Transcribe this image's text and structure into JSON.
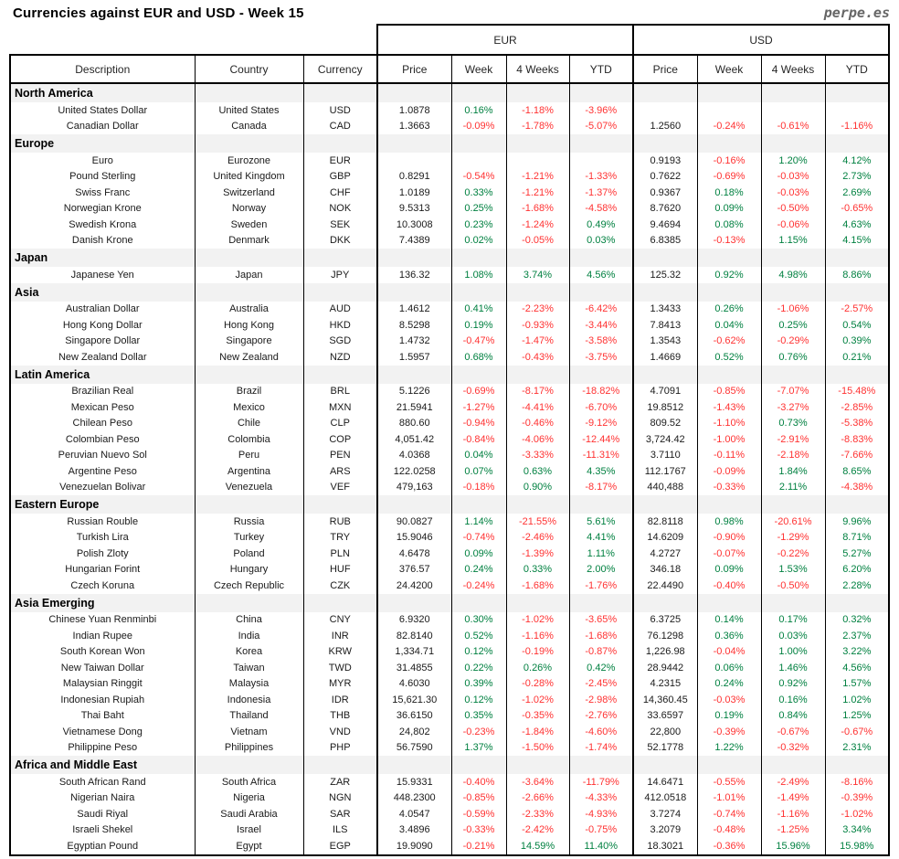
{
  "brand": "perpe.es",
  "colors": {
    "positive": "#008040",
    "negative": "#FF3232",
    "region_band": "#F2F2F2",
    "brand_gray": "#666666",
    "border": "#000000"
  },
  "chart_data": {
    "type": "table",
    "title": "Currencies against EUR and USD - Week 15",
    "group_headers": [
      "EUR",
      "USD"
    ],
    "columns": [
      "Description",
      "Country",
      "Currency",
      "Price",
      "Week",
      "4 Weeks",
      "YTD",
      "Price",
      "Week",
      "4 Weeks",
      "YTD"
    ],
    "sections": [
      {
        "region": "North America",
        "rows": [
          [
            "United States Dollar",
            "United States",
            "USD",
            "1.0878",
            "0.16%",
            "-1.18%",
            "-3.96%",
            "",
            "",
            "",
            ""
          ],
          [
            "Canadian Dollar",
            "Canada",
            "CAD",
            "1.3663",
            "-0.09%",
            "-1.78%",
            "-5.07%",
            "1.2560",
            "-0.24%",
            "-0.61%",
            "-1.16%"
          ]
        ]
      },
      {
        "region": "Europe",
        "rows": [
          [
            "Euro",
            "Eurozone",
            "EUR",
            "",
            "",
            "",
            "",
            "0.9193",
            "-0.16%",
            "1.20%",
            "4.12%"
          ],
          [
            "Pound Sterling",
            "United Kingdom",
            "GBP",
            "0.8291",
            "-0.54%",
            "-1.21%",
            "-1.33%",
            "0.7622",
            "-0.69%",
            "-0.03%",
            "2.73%"
          ],
          [
            "Swiss Franc",
            "Switzerland",
            "CHF",
            "1.0189",
            "0.33%",
            "-1.21%",
            "-1.37%",
            "0.9367",
            "0.18%",
            "-0.03%",
            "2.69%"
          ],
          [
            "Norwegian Krone",
            "Norway",
            "NOK",
            "9.5313",
            "0.25%",
            "-1.68%",
            "-4.58%",
            "8.7620",
            "0.09%",
            "-0.50%",
            "-0.65%"
          ],
          [
            "Swedish Krona",
            "Sweden",
            "SEK",
            "10.3008",
            "0.23%",
            "-1.24%",
            "0.49%",
            "9.4694",
            "0.08%",
            "-0.06%",
            "4.63%"
          ],
          [
            "Danish Krone",
            "Denmark",
            "DKK",
            "7.4389",
            "0.02%",
            "-0.05%",
            "0.03%",
            "6.8385",
            "-0.13%",
            "1.15%",
            "4.15%"
          ]
        ]
      },
      {
        "region": "Japan",
        "rows": [
          [
            "Japanese Yen",
            "Japan",
            "JPY",
            "136.32",
            "1.08%",
            "3.74%",
            "4.56%",
            "125.32",
            "0.92%",
            "4.98%",
            "8.86%"
          ]
        ]
      },
      {
        "region": "Asia",
        "rows": [
          [
            "Australian Dollar",
            "Australia",
            "AUD",
            "1.4612",
            "0.41%",
            "-2.23%",
            "-6.42%",
            "1.3433",
            "0.26%",
            "-1.06%",
            "-2.57%"
          ],
          [
            "Hong Kong Dollar",
            "Hong Kong",
            "HKD",
            "8.5298",
            "0.19%",
            "-0.93%",
            "-3.44%",
            "7.8413",
            "0.04%",
            "0.25%",
            "0.54%"
          ],
          [
            "Singapore Dollar",
            "Singapore",
            "SGD",
            "1.4732",
            "-0.47%",
            "-1.47%",
            "-3.58%",
            "1.3543",
            "-0.62%",
            "-0.29%",
            "0.39%"
          ],
          [
            "New Zealand Dollar",
            "New Zealand",
            "NZD",
            "1.5957",
            "0.68%",
            "-0.43%",
            "-3.75%",
            "1.4669",
            "0.52%",
            "0.76%",
            "0.21%"
          ]
        ]
      },
      {
        "region": "Latin America",
        "rows": [
          [
            "Brazilian Real",
            "Brazil",
            "BRL",
            "5.1226",
            "-0.69%",
            "-8.17%",
            "-18.82%",
            "4.7091",
            "-0.85%",
            "-7.07%",
            "-15.48%"
          ],
          [
            "Mexican Peso",
            "Mexico",
            "MXN",
            "21.5941",
            "-1.27%",
            "-4.41%",
            "-6.70%",
            "19.8512",
            "-1.43%",
            "-3.27%",
            "-2.85%"
          ],
          [
            "Chilean Peso",
            "Chile",
            "CLP",
            "880.60",
            "-0.94%",
            "-0.46%",
            "-9.12%",
            "809.52",
            "-1.10%",
            "0.73%",
            "-5.38%"
          ],
          [
            "Colombian Peso",
            "Colombia",
            "COP",
            "4,051.42",
            "-0.84%",
            "-4.06%",
            "-12.44%",
            "3,724.42",
            "-1.00%",
            "-2.91%",
            "-8.83%"
          ],
          [
            "Peruvian Nuevo Sol",
            "Peru",
            "PEN",
            "4.0368",
            "0.04%",
            "-3.33%",
            "-11.31%",
            "3.7110",
            "-0.11%",
            "-2.18%",
            "-7.66%"
          ],
          [
            "Argentine Peso",
            "Argentina",
            "ARS",
            "122.0258",
            "0.07%",
            "0.63%",
            "4.35%",
            "112.1767",
            "-0.09%",
            "1.84%",
            "8.65%"
          ],
          [
            "Venezuelan Bolivar",
            "Venezuela",
            "VEF",
            "479,163",
            "-0.18%",
            "0.90%",
            "-8.17%",
            "440,488",
            "-0.33%",
            "2.11%",
            "-4.38%"
          ]
        ]
      },
      {
        "region": "Eastern Europe",
        "rows": [
          [
            "Russian Rouble",
            "Russia",
            "RUB",
            "90.0827",
            "1.14%",
            "-21.55%",
            "5.61%",
            "82.8118",
            "0.98%",
            "-20.61%",
            "9.96%"
          ],
          [
            "Turkish Lira",
            "Turkey",
            "TRY",
            "15.9046",
            "-0.74%",
            "-2.46%",
            "4.41%",
            "14.6209",
            "-0.90%",
            "-1.29%",
            "8.71%"
          ],
          [
            "Polish Zloty",
            "Poland",
            "PLN",
            "4.6478",
            "0.09%",
            "-1.39%",
            "1.11%",
            "4.2727",
            "-0.07%",
            "-0.22%",
            "5.27%"
          ],
          [
            "Hungarian Forint",
            "Hungary",
            "HUF",
            "376.57",
            "0.24%",
            "0.33%",
            "2.00%",
            "346.18",
            "0.09%",
            "1.53%",
            "6.20%"
          ],
          [
            "Czech Koruna",
            "Czech Republic",
            "CZK",
            "24.4200",
            "-0.24%",
            "-1.68%",
            "-1.76%",
            "22.4490",
            "-0.40%",
            "-0.50%",
            "2.28%"
          ]
        ]
      },
      {
        "region": "Asia Emerging",
        "rows": [
          [
            "Chinese Yuan Renminbi",
            "China",
            "CNY",
            "6.9320",
            "0.30%",
            "-1.02%",
            "-3.65%",
            "6.3725",
            "0.14%",
            "0.17%",
            "0.32%"
          ],
          [
            "Indian Rupee",
            "India",
            "INR",
            "82.8140",
            "0.52%",
            "-1.16%",
            "-1.68%",
            "76.1298",
            "0.36%",
            "0.03%",
            "2.37%"
          ],
          [
            "South Korean Won",
            "Korea",
            "KRW",
            "1,334.71",
            "0.12%",
            "-0.19%",
            "-0.87%",
            "1,226.98",
            "-0.04%",
            "1.00%",
            "3.22%"
          ],
          [
            "New Taiwan Dollar",
            "Taiwan",
            "TWD",
            "31.4855",
            "0.22%",
            "0.26%",
            "0.42%",
            "28.9442",
            "0.06%",
            "1.46%",
            "4.56%"
          ],
          [
            "Malaysian Ringgit",
            "Malaysia",
            "MYR",
            "4.6030",
            "0.39%",
            "-0.28%",
            "-2.45%",
            "4.2315",
            "0.24%",
            "0.92%",
            "1.57%"
          ],
          [
            "Indonesian Rupiah",
            "Indonesia",
            "IDR",
            "15,621.30",
            "0.12%",
            "-1.02%",
            "-2.98%",
            "14,360.45",
            "-0.03%",
            "0.16%",
            "1.02%"
          ],
          [
            "Thai Baht",
            "Thailand",
            "THB",
            "36.6150",
            "0.35%",
            "-0.35%",
            "-2.76%",
            "33.6597",
            "0.19%",
            "0.84%",
            "1.25%"
          ],
          [
            "Vietnamese Dong",
            "Vietnam",
            "VND",
            "24,802",
            "-0.23%",
            "-1.84%",
            "-4.60%",
            "22,800",
            "-0.39%",
            "-0.67%",
            "-0.67%"
          ],
          [
            "Philippine Peso",
            "Philippines",
            "PHP",
            "56.7590",
            "1.37%",
            "-1.50%",
            "-1.74%",
            "52.1778",
            "1.22%",
            "-0.32%",
            "2.31%"
          ]
        ]
      },
      {
        "region": "Africa and Middle East",
        "rows": [
          [
            "South African Rand",
            "South Africa",
            "ZAR",
            "15.9331",
            "-0.40%",
            "-3.64%",
            "-11.79%",
            "14.6471",
            "-0.55%",
            "-2.49%",
            "-8.16%"
          ],
          [
            "Nigerian Naira",
            "Nigeria",
            "NGN",
            "448.2300",
            "-0.85%",
            "-2.66%",
            "-4.33%",
            "412.0518",
            "-1.01%",
            "-1.49%",
            "-0.39%"
          ],
          [
            "Saudi Riyal",
            "Saudi Arabia",
            "SAR",
            "4.0547",
            "-0.59%",
            "-2.33%",
            "-4.93%",
            "3.7274",
            "-0.74%",
            "-1.16%",
            "-1.02%"
          ],
          [
            "Israeli Shekel",
            "Israel",
            "ILS",
            "3.4896",
            "-0.33%",
            "-2.42%",
            "-0.75%",
            "3.2079",
            "-0.48%",
            "-1.25%",
            "3.34%"
          ],
          [
            "Egyptian Pound",
            "Egypt",
            "EGP",
            "19.9090",
            "-0.21%",
            "14.59%",
            "11.40%",
            "18.3021",
            "-0.36%",
            "15.96%",
            "15.98%"
          ]
        ]
      }
    ]
  }
}
